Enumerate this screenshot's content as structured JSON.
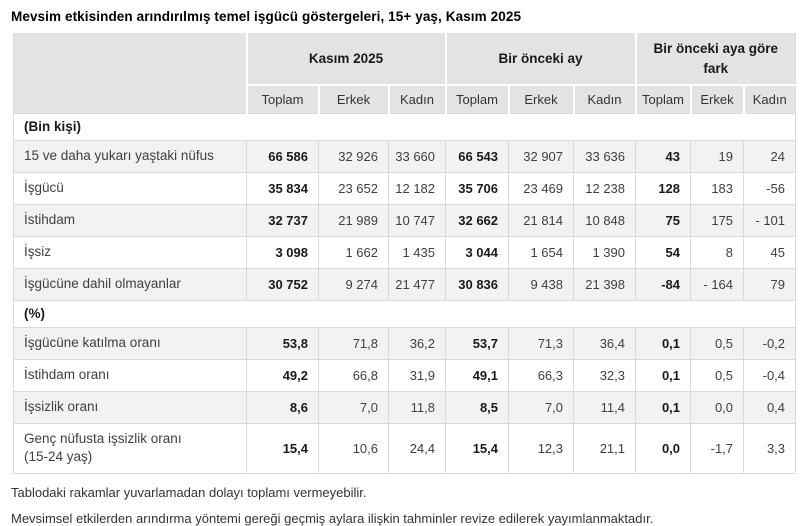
{
  "title": "Mevsim etkisinden arındırılmış temel işgücü göstergeleri, 15+ yaş, Kasım 2025",
  "table": {
    "column_groups": [
      "Kasım 2025",
      "Bir önceki ay",
      "Bir önceki aya göre fark"
    ],
    "sub_headers": [
      "Toplam",
      "Erkek",
      "Kadın"
    ],
    "sections": [
      {
        "label": "(Bin kişi)",
        "rows": [
          {
            "label": "15 ve daha yukarı yaştaki nüfus",
            "values": [
              "66 586",
              "32 926",
              "33 660",
              "66 543",
              "32 907",
              "33 636",
              "43",
              "19",
              "24"
            ]
          },
          {
            "label": "İşgücü",
            "values": [
              "35 834",
              "23 652",
              "12 182",
              "35 706",
              "23 469",
              "12 238",
              "128",
              "183",
              "-56"
            ]
          },
          {
            "label": "İstihdam",
            "values": [
              "32 737",
              "21 989",
              "10 747",
              "32 662",
              "21 814",
              "10 848",
              "75",
              "175",
              "- 101"
            ]
          },
          {
            "label": "İşsiz",
            "values": [
              "3 098",
              "1 662",
              "1 435",
              "3 044",
              "1 654",
              "1 390",
              "54",
              "8",
              "45"
            ]
          },
          {
            "label": "İşgücüne dahil olmayanlar",
            "values": [
              "30 752",
              "9 274",
              "21 477",
              "30 836",
              "9 438",
              "21 398",
              "-84",
              "- 164",
              "79"
            ]
          }
        ]
      },
      {
        "label": "(%)",
        "rows": [
          {
            "label": "İşgücüne katılma oranı",
            "values": [
              "53,8",
              "71,8",
              "36,2",
              "53,7",
              "71,3",
              "36,4",
              "0,1",
              "0,5",
              "-0,2"
            ]
          },
          {
            "label": "İstihdam oranı",
            "values": [
              "49,2",
              "66,8",
              "31,9",
              "49,1",
              "66,3",
              "32,3",
              "0,1",
              "0,5",
              "-0,4"
            ]
          },
          {
            "label": "İşsizlik oranı",
            "values": [
              "8,6",
              "7,0",
              "11,8",
              "8,5",
              "7,0",
              "11,4",
              "0,1",
              "0,0",
              "0,4"
            ]
          },
          {
            "label": "Genç nüfusta işsizlik oranı",
            "label2": "(15-24 yaş)",
            "values": [
              "15,4",
              "10,6",
              "24,4",
              "15,4",
              "12,3",
              "21,1",
              "0,0",
              "-1,7",
              "3,3"
            ]
          }
        ]
      }
    ]
  },
  "footnotes": [
    "Tablodaki rakamlar yuvarlamadan dolayı toplamı vermeyebilir.",
    "Mevsimsel etkilerden arındırma yöntemi gereği geçmiş aylara ilişkin tahminler revize edilerek yayımlanmaktadır."
  ],
  "colors": {
    "header_bg": "#e3e3e3",
    "stripe_bg": "#f2f2f2",
    "border": "#d9d9d9",
    "text": "#404040",
    "strong_text": "#1a1a1a"
  }
}
